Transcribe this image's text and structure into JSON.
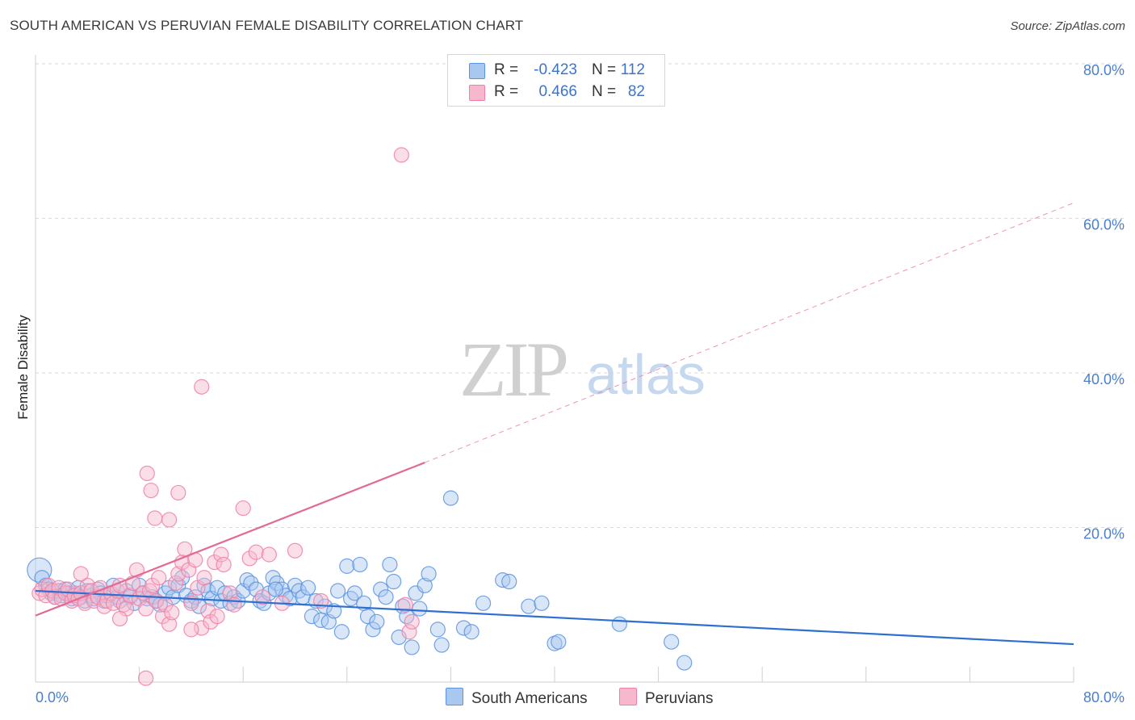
{
  "title": "SOUTH AMERICAN VS PERUVIAN FEMALE DISABILITY CORRELATION CHART",
  "source": "Source: ZipAtlas.com",
  "colors": {
    "blue": "#5b93e0",
    "blue_fill": "#a9c8f0",
    "blue_line": "#2e6fd0",
    "pink": "#f07fa4",
    "pink_fill": "#f7b7cc",
    "pink_line": "#e26a93",
    "tick_text": "#4a7fcf",
    "grid": "#d9d9d9"
  },
  "legend": {
    "rows": [
      {
        "name": "South Americans",
        "r_label": "R =",
        "r_value": "-0.423",
        "n_label": "N =",
        "n_value": "112"
      },
      {
        "name": "Peruvians",
        "r_label": "R =",
        "r_value": "0.466",
        "n_label": "N =",
        "n_value": "82"
      }
    ]
  },
  "watermark": {
    "zip": "ZIP",
    "atlas": "atlas"
  },
  "chart_data": {
    "type": "scatter",
    "title": "SOUTH AMERICAN VS PERUVIAN FEMALE DISABILITY CORRELATION CHART",
    "xlabel": "",
    "ylabel": "Female Disability",
    "xlim": [
      0,
      80
    ],
    "ylim": [
      0,
      80
    ],
    "x_tick_labels": [
      "0.0%",
      "80.0%"
    ],
    "y_tick_labels": [
      "20.0%",
      "40.0%",
      "60.0%",
      "80.0%"
    ],
    "y_ticks": [
      20,
      40,
      60,
      80
    ],
    "grid": true,
    "series": [
      {
        "name": "South Americans",
        "r": -0.423,
        "n": 112,
        "trend": {
          "x": [
            0,
            80
          ],
          "y": [
            11.8,
            4.9
          ],
          "dashed_extension": false
        },
        "points": [
          [
            0.3,
            14.5
          ],
          [
            0.5,
            13.5
          ],
          [
            0.8,
            12.5
          ],
          [
            1.0,
            12.0
          ],
          [
            1.2,
            11.5
          ],
          [
            1.5,
            11.0
          ],
          [
            1.8,
            11.8
          ],
          [
            2.0,
            11.2
          ],
          [
            2.3,
            12.0
          ],
          [
            2.5,
            11.5
          ],
          [
            2.8,
            10.8
          ],
          [
            3.0,
            11.5
          ],
          [
            3.3,
            12.2
          ],
          [
            3.5,
            11.0
          ],
          [
            3.8,
            10.5
          ],
          [
            4.0,
            11.8
          ],
          [
            4.3,
            11.2
          ],
          [
            4.5,
            10.8
          ],
          [
            4.8,
            12.0
          ],
          [
            5.0,
            11.5
          ],
          [
            5.3,
            10.5
          ],
          [
            5.5,
            11.2
          ],
          [
            6.0,
            12.5
          ],
          [
            6.3,
            11.0
          ],
          [
            6.5,
            10.5
          ],
          [
            7.0,
            11.8
          ],
          [
            7.3,
            11.0
          ],
          [
            7.6,
            10.2
          ],
          [
            8.0,
            12.5
          ],
          [
            8.3,
            11.5
          ],
          [
            8.6,
            10.8
          ],
          [
            9.0,
            11.0
          ],
          [
            9.3,
            10.5
          ],
          [
            9.6,
            10.0
          ],
          [
            10.0,
            11.5
          ],
          [
            10.3,
            12.2
          ],
          [
            10.6,
            11.0
          ],
          [
            11.0,
            12.5
          ],
          [
            11.3,
            13.5
          ],
          [
            11.6,
            11.2
          ],
          [
            12.0,
            10.5
          ],
          [
            12.3,
            11.0
          ],
          [
            12.6,
            9.8
          ],
          [
            13.0,
            12.5
          ],
          [
            13.3,
            11.8
          ],
          [
            13.6,
            10.8
          ],
          [
            14.0,
            12.2
          ],
          [
            14.3,
            10.5
          ],
          [
            14.6,
            11.5
          ],
          [
            15.0,
            10.2
          ],
          [
            15.3,
            11.0
          ],
          [
            15.6,
            10.5
          ],
          [
            16.0,
            11.8
          ],
          [
            16.3,
            13.2
          ],
          [
            16.6,
            12.8
          ],
          [
            17.0,
            12.0
          ],
          [
            17.3,
            10.5
          ],
          [
            17.6,
            10.2
          ],
          [
            18.0,
            11.5
          ],
          [
            18.3,
            13.5
          ],
          [
            18.6,
            12.8
          ],
          [
            19.0,
            12.0
          ],
          [
            19.3,
            11.2
          ],
          [
            19.6,
            10.8
          ],
          [
            20.0,
            12.5
          ],
          [
            20.3,
            11.8
          ],
          [
            20.6,
            11.0
          ],
          [
            21.0,
            12.2
          ],
          [
            21.3,
            8.5
          ],
          [
            21.6,
            10.5
          ],
          [
            22.0,
            8.0
          ],
          [
            22.3,
            9.8
          ],
          [
            22.6,
            7.8
          ],
          [
            23.0,
            9.2
          ],
          [
            23.3,
            11.8
          ],
          [
            23.6,
            6.5
          ],
          [
            24.0,
            15.0
          ],
          [
            24.3,
            10.8
          ],
          [
            24.6,
            11.5
          ],
          [
            25.0,
            15.2
          ],
          [
            25.3,
            10.2
          ],
          [
            25.6,
            8.5
          ],
          [
            26.0,
            6.8
          ],
          [
            26.3,
            7.8
          ],
          [
            26.6,
            12.0
          ],
          [
            27.0,
            11.0
          ],
          [
            27.3,
            15.2
          ],
          [
            27.6,
            13.0
          ],
          [
            28.0,
            5.8
          ],
          [
            28.3,
            9.8
          ],
          [
            28.6,
            8.5
          ],
          [
            29.0,
            4.5
          ],
          [
            29.3,
            11.5
          ],
          [
            29.6,
            9.5
          ],
          [
            30.0,
            12.5
          ],
          [
            30.3,
            14.0
          ],
          [
            31.0,
            6.8
          ],
          [
            31.3,
            4.8
          ],
          [
            32.0,
            23.8
          ],
          [
            33.0,
            7.0
          ],
          [
            33.6,
            6.5
          ],
          [
            34.5,
            10.2
          ],
          [
            36.0,
            13.2
          ],
          [
            36.5,
            13.0
          ],
          [
            38.0,
            9.8
          ],
          [
            39.0,
            10.2
          ],
          [
            40.0,
            5.0
          ],
          [
            40.3,
            5.2
          ],
          [
            45.0,
            7.5
          ],
          [
            49.0,
            5.2
          ],
          [
            50.0,
            2.5
          ],
          [
            18.5,
            12.0
          ]
        ]
      },
      {
        "name": "Peruvians",
        "r": 0.466,
        "n": 82,
        "trend": {
          "x": [
            0,
            30
          ],
          "y": [
            8.6,
            28.4
          ],
          "dashed_extension": true,
          "dashed_to": {
            "x": 80,
            "y": 62.0
          }
        },
        "points": [
          [
            0.3,
            11.5
          ],
          [
            0.5,
            12.0
          ],
          [
            0.8,
            11.2
          ],
          [
            1.0,
            12.5
          ],
          [
            1.3,
            11.8
          ],
          [
            1.5,
            11.0
          ],
          [
            1.8,
            12.2
          ],
          [
            2.0,
            10.8
          ],
          [
            2.3,
            11.5
          ],
          [
            2.5,
            12.0
          ],
          [
            2.8,
            10.5
          ],
          [
            3.0,
            11.2
          ],
          [
            3.3,
            10.8
          ],
          [
            3.5,
            11.5
          ],
          [
            3.8,
            10.2
          ],
          [
            4.0,
            12.5
          ],
          [
            4.3,
            11.8
          ],
          [
            4.5,
            10.5
          ],
          [
            4.8,
            11.0
          ],
          [
            5.0,
            12.2
          ],
          [
            5.3,
            9.8
          ],
          [
            5.5,
            10.5
          ],
          [
            5.8,
            11.5
          ],
          [
            6.0,
            10.2
          ],
          [
            6.3,
            11.8
          ],
          [
            6.5,
            12.5
          ],
          [
            6.8,
            10.0
          ],
          [
            7.0,
            9.5
          ],
          [
            7.3,
            11.2
          ],
          [
            7.5,
            12.8
          ],
          [
            7.8,
            14.5
          ],
          [
            8.0,
            10.8
          ],
          [
            8.3,
            11.5
          ],
          [
            8.5,
            9.5
          ],
          [
            8.8,
            11.8
          ],
          [
            9.0,
            12.5
          ],
          [
            9.3,
            10.5
          ],
          [
            9.5,
            13.5
          ],
          [
            9.8,
            8.5
          ],
          [
            10.0,
            10.0
          ],
          [
            10.3,
            7.5
          ],
          [
            10.5,
            9.0
          ],
          [
            10.8,
            12.8
          ],
          [
            11.0,
            14.0
          ],
          [
            11.3,
            15.5
          ],
          [
            11.5,
            17.2
          ],
          [
            11.8,
            14.5
          ],
          [
            12.0,
            10.2
          ],
          [
            12.3,
            15.8
          ],
          [
            12.5,
            12.2
          ],
          [
            12.8,
            7.0
          ],
          [
            13.0,
            13.5
          ],
          [
            13.3,
            9.2
          ],
          [
            13.5,
            7.8
          ],
          [
            13.8,
            15.5
          ],
          [
            14.0,
            8.5
          ],
          [
            14.3,
            16.5
          ],
          [
            14.5,
            15.2
          ],
          [
            15.0,
            11.5
          ],
          [
            15.3,
            10.0
          ],
          [
            16.0,
            22.5
          ],
          [
            16.5,
            16.0
          ],
          [
            17.0,
            16.8
          ],
          [
            17.5,
            11.0
          ],
          [
            18.0,
            16.5
          ],
          [
            19.0,
            10.2
          ],
          [
            20.0,
            17.0
          ],
          [
            22.0,
            10.5
          ],
          [
            28.5,
            10.0
          ],
          [
            28.8,
            6.5
          ],
          [
            29.0,
            7.8
          ],
          [
            8.6,
            27.0
          ],
          [
            8.9,
            24.8
          ],
          [
            9.2,
            21.2
          ],
          [
            10.3,
            21.0
          ],
          [
            11.0,
            24.5
          ],
          [
            12.8,
            38.2
          ],
          [
            28.2,
            68.2
          ],
          [
            8.5,
            0.5
          ],
          [
            12.0,
            6.8
          ],
          [
            3.5,
            14.0
          ],
          [
            6.5,
            8.2
          ]
        ]
      }
    ]
  }
}
